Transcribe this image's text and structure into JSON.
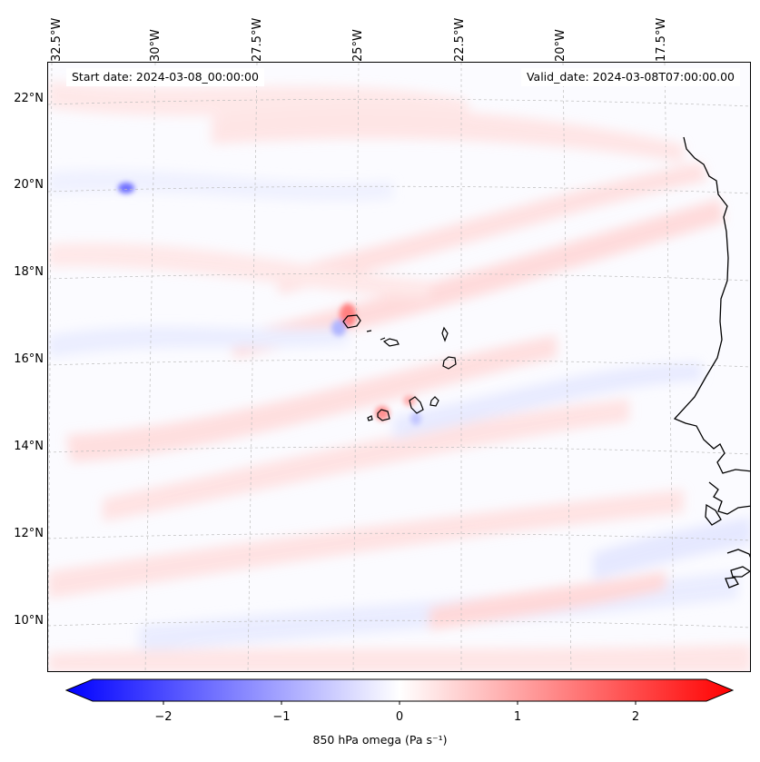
{
  "header": {
    "start_label": "Start date: 2024-03-08_00:00:00",
    "valid_label": "Valid_date: 2024-03-08T07:00:00.00"
  },
  "map": {
    "lat_range": [
      8.8,
      22.8
    ],
    "lon_range": [
      -33.0,
      -15.1
    ],
    "lat_ticks": [
      "10°N",
      "12°N",
      "14°N",
      "16°N",
      "18°N",
      "20°N",
      "22°N"
    ],
    "lon_ticks": [
      "32.5°W",
      "30°W",
      "27.5°W",
      "25°W",
      "22.5°W",
      "20°W",
      "17.5°W"
    ],
    "gridlines": true,
    "field_colors": {
      "negative": "#0000ff",
      "zero": "#ffffff",
      "positive": "#ff0000"
    }
  },
  "colorbar": {
    "label": "850 hPa omega (Pa s⁻¹)",
    "range": [
      -2.6,
      2.6
    ],
    "ticks": [
      "−2",
      "−1",
      "0",
      "1",
      "2"
    ],
    "tick_values": [
      -2,
      -1,
      0,
      1,
      2
    ],
    "extend": "both",
    "cmap": "bwr"
  }
}
